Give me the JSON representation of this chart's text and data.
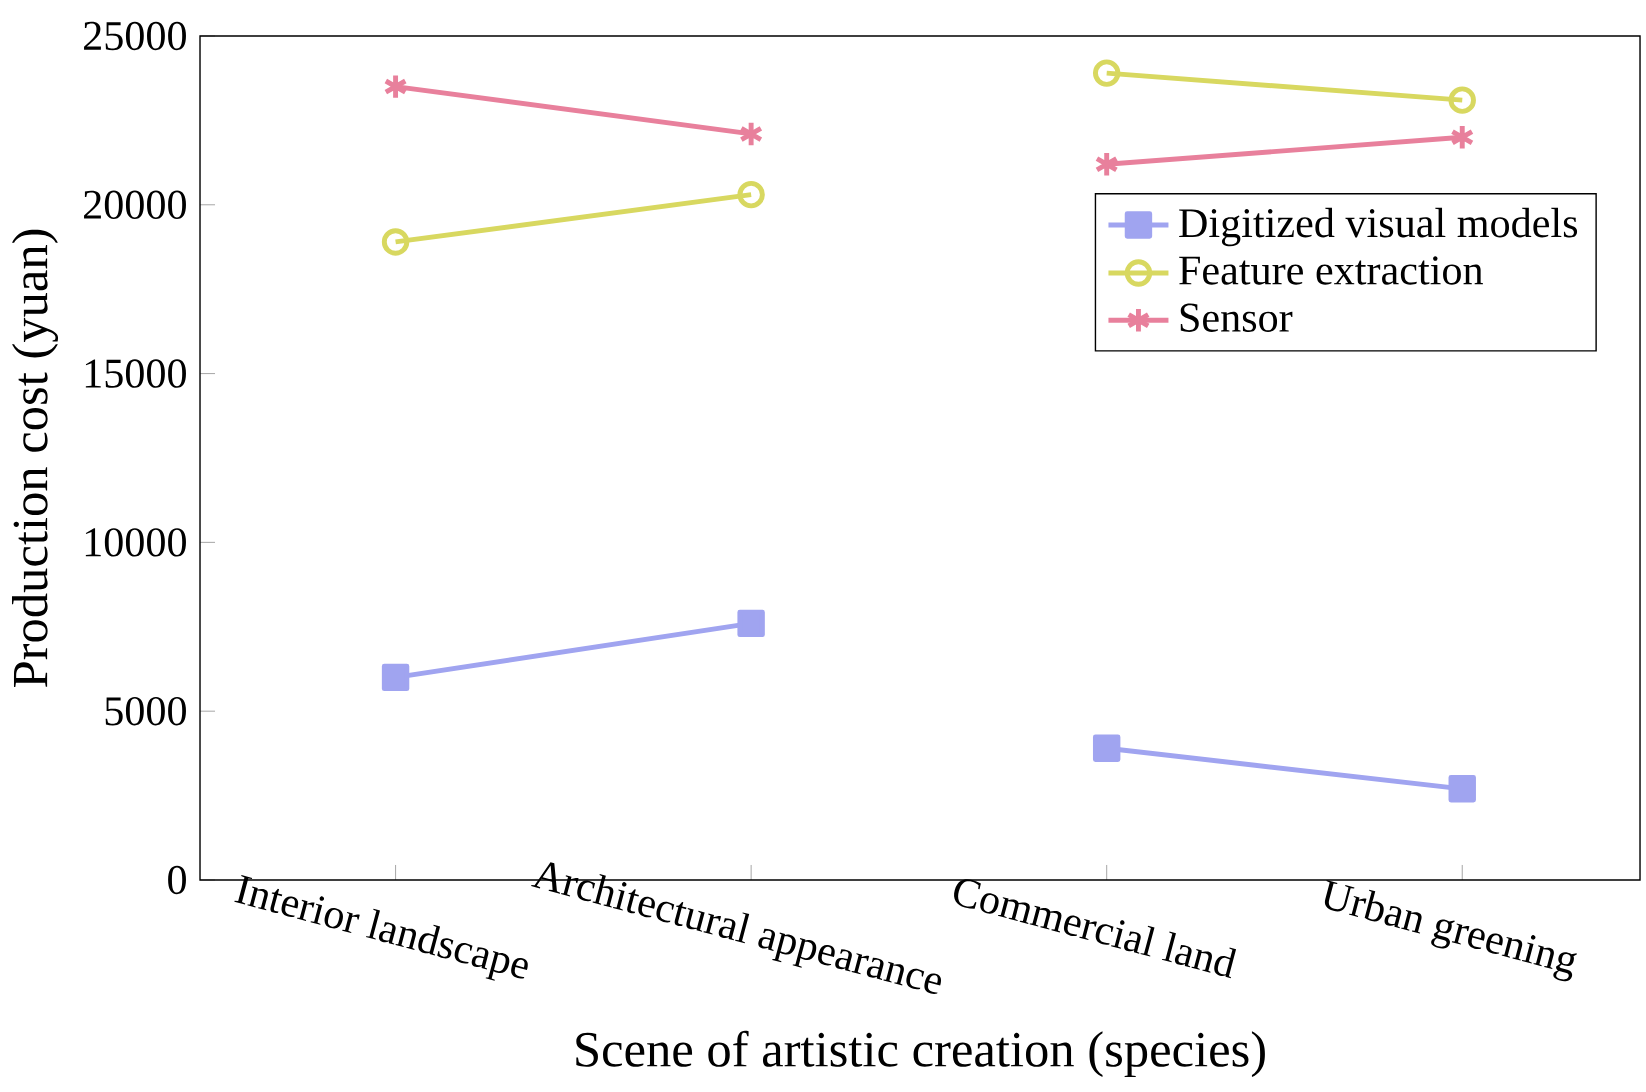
{
  "chart_data": {
    "type": "line",
    "xlabel": "Scene of artistic creation (species)",
    "ylabel": "Production cost (yuan)",
    "categories": [
      "Interior landscape",
      "Architectural appearance",
      "Commercial land",
      "Urban greening"
    ],
    "ylim": [
      0,
      25000
    ],
    "yticks": [
      0,
      5000,
      10000,
      15000,
      20000,
      25000
    ],
    "legend": "right",
    "series": [
      {
        "name": "Digitized visual models",
        "color": "#a0a4f0",
        "marker": "square",
        "values": [
          6000,
          7600,
          null,
          null
        ]
      },
      {
        "name": "Feature extraction",
        "color": "#d8d860",
        "marker": "circle",
        "values": [
          18900,
          20300,
          null,
          null
        ]
      },
      {
        "name": "Sensor",
        "color": "#e8809c",
        "marker": "cross",
        "values": [
          23500,
          22100,
          null,
          null
        ]
      },
      {
        "color": "#a0a4f0",
        "marker": "square",
        "values": [
          null,
          null,
          3900,
          2700
        ]
      },
      {
        "color": "#d8d860",
        "marker": "circle",
        "values": [
          null,
          null,
          23900,
          23100
        ]
      },
      {
        "color": "#e8809c",
        "marker": "cross",
        "values": [
          null,
          null,
          21200,
          22000
        ]
      }
    ]
  }
}
